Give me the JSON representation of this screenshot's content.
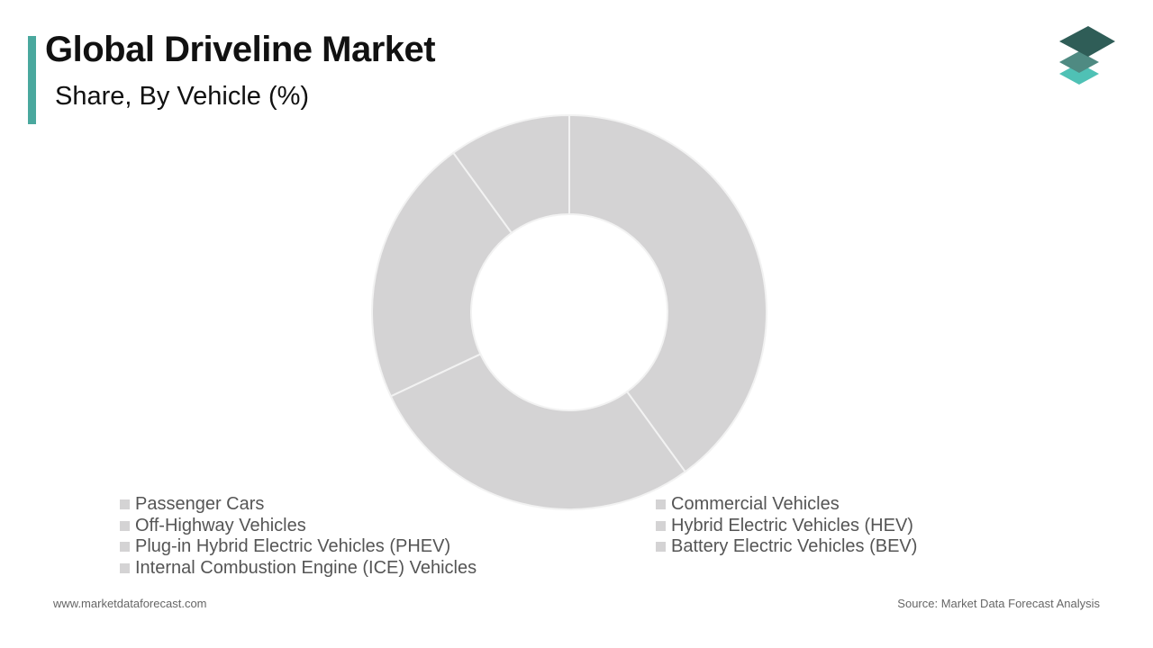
{
  "header": {
    "title": "Global Driveline Market",
    "subtitle": "Share, By Vehicle (%)"
  },
  "chart_data": {
    "type": "pie",
    "title": "Global Driveline Market",
    "subtitle": "Share, By Vehicle (%)",
    "donut": true,
    "categories": [
      "Passenger Cars",
      "Commercial Vehicles",
      "Off-Highway Vehicles",
      "Hybrid Electric Vehicles (HEV)",
      "Plug-in Hybrid Electric Vehicles (PHEV)",
      "Battery Electric Vehicles (BEV)",
      "Internal Combustion Engine (ICE) Vehicles"
    ],
    "values": [
      40,
      0,
      28,
      0,
      0,
      0,
      0
    ],
    "visible_segments": [
      40,
      28,
      22,
      10
    ],
    "legend_placement": "bottom",
    "segment_color": "#d4d3d4",
    "segment_stroke": "#f2f2f2"
  },
  "legend": {
    "items": [
      {
        "label": "Passenger Cars"
      },
      {
        "label": "Commercial Vehicles"
      },
      {
        "label": "Off-Highway Vehicles"
      },
      {
        "label": "Hybrid Electric Vehicles (HEV)"
      },
      {
        "label": "Plug-in Hybrid Electric Vehicles (PHEV)"
      },
      {
        "label": "Battery Electric Vehicles (BEV)"
      },
      {
        "label": "Internal Combustion Engine (ICE) Vehicles"
      }
    ]
  },
  "footer": {
    "website": "www.marketdataforecast.com",
    "source": "Source: Market Data Forecast Analysis"
  },
  "colors": {
    "accent": "#4aa89e",
    "logo_dark": "#2f5d57",
    "logo_mid": "#4f8a82",
    "logo_light": "#4fc1b5"
  }
}
